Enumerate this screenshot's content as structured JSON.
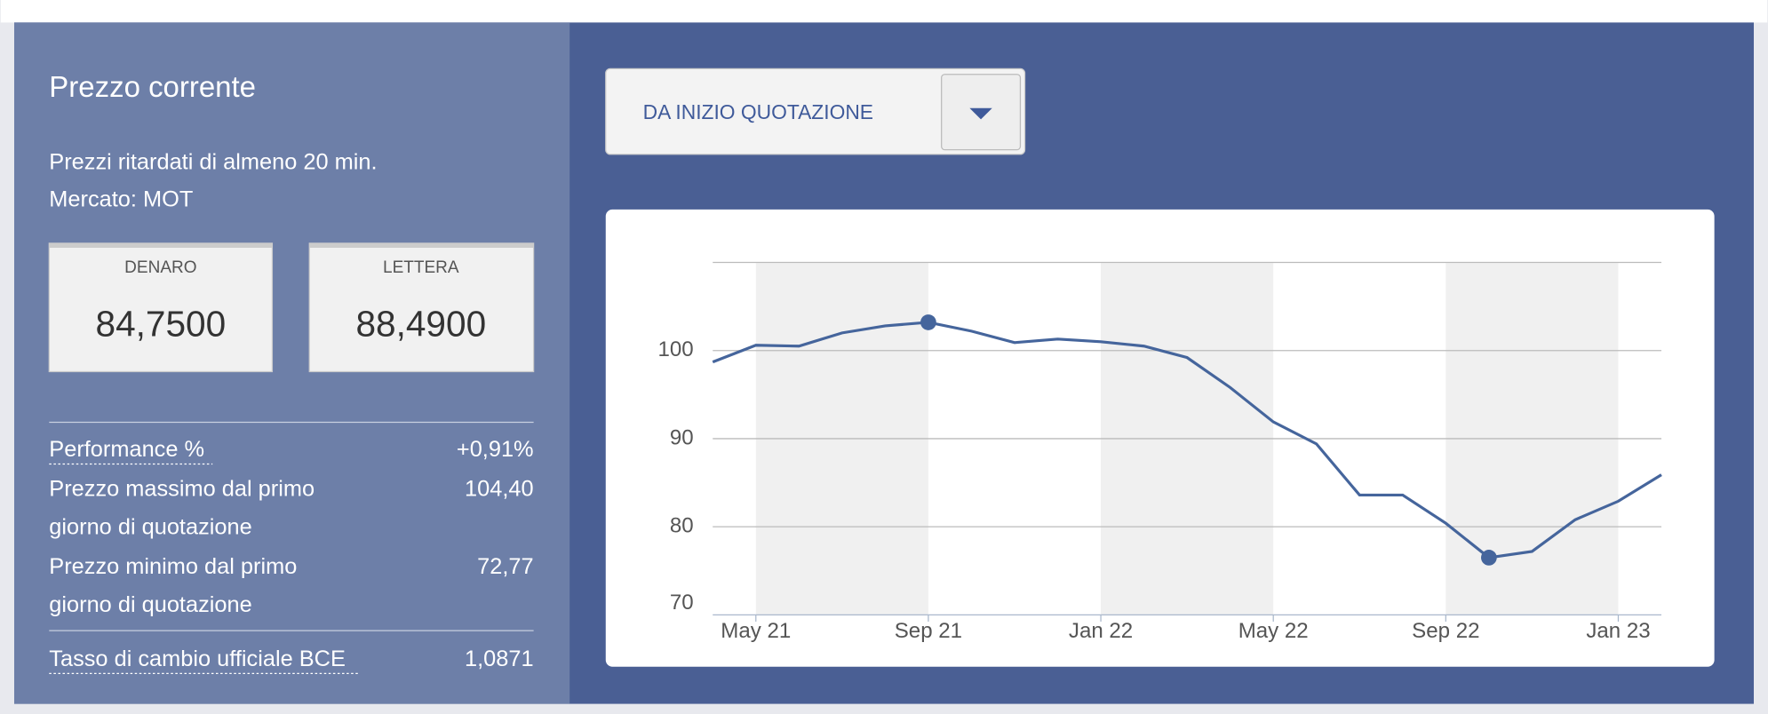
{
  "panel": {
    "title": "Prezzo corrente",
    "note": "Prezzi ritardati di almeno 20 min.",
    "market": "Mercato: MOT",
    "quotes": [
      {
        "label": "DENARO",
        "value": "84,7500"
      },
      {
        "label": "LETTERA",
        "value": "88,4900"
      }
    ],
    "stats": [
      {
        "label_lines": [
          "Performance %"
        ],
        "value": "+0,91%"
      },
      {
        "label_lines": [
          "Prezzo massimo dal primo",
          "giorno di quotazione"
        ],
        "value": "104,40"
      },
      {
        "label_lines": [
          "Prezzo minimo dal primo",
          "giorno di quotazione"
        ],
        "value": "72,77"
      },
      {
        "label_lines": [
          "Tasso di cambio ufficiale BCE"
        ],
        "value": "1,0871"
      }
    ]
  },
  "dropdown": {
    "label": "DA INIZIO QUOTAZIONE"
  },
  "chart_data": {
    "type": "line",
    "color": "#45659c",
    "x": [
      "2021-04",
      "2021-05",
      "2021-06",
      "2021-07",
      "2021-08",
      "2021-09",
      "2021-10",
      "2021-11",
      "2021-12",
      "2022-01",
      "2022-02",
      "2022-03",
      "2022-04",
      "2022-05",
      "2022-06",
      "2022-07",
      "2022-08",
      "2022-09",
      "2022-10",
      "2022-11",
      "2022-12",
      "2023-01",
      "2023-02"
    ],
    "values": [
      98.7,
      100.6,
      100.5,
      102,
      102.8,
      103.2,
      102.2,
      100.9,
      101.3,
      101,
      100.5,
      99.2,
      95.8,
      91.9,
      89.4,
      83.6,
      83.6,
      80.4,
      76.5,
      77.2,
      80.8,
      82.9,
      85.9
    ],
    "xlim": [
      "2021-04",
      "2023-02"
    ],
    "xticks": [
      {
        "value": "2021-05",
        "label": "May 21"
      },
      {
        "value": "2021-09",
        "label": "Sep 21"
      },
      {
        "value": "2022-01",
        "label": "Jan 22"
      },
      {
        "value": "2022-05",
        "label": "May 22"
      },
      {
        "value": "2022-09",
        "label": "Sep 22"
      },
      {
        "value": "2023-01",
        "label": "Jan 23"
      }
    ],
    "ylim": [
      70,
      110
    ],
    "yticks": [
      70,
      80,
      90,
      100
    ],
    "grid": true
  }
}
